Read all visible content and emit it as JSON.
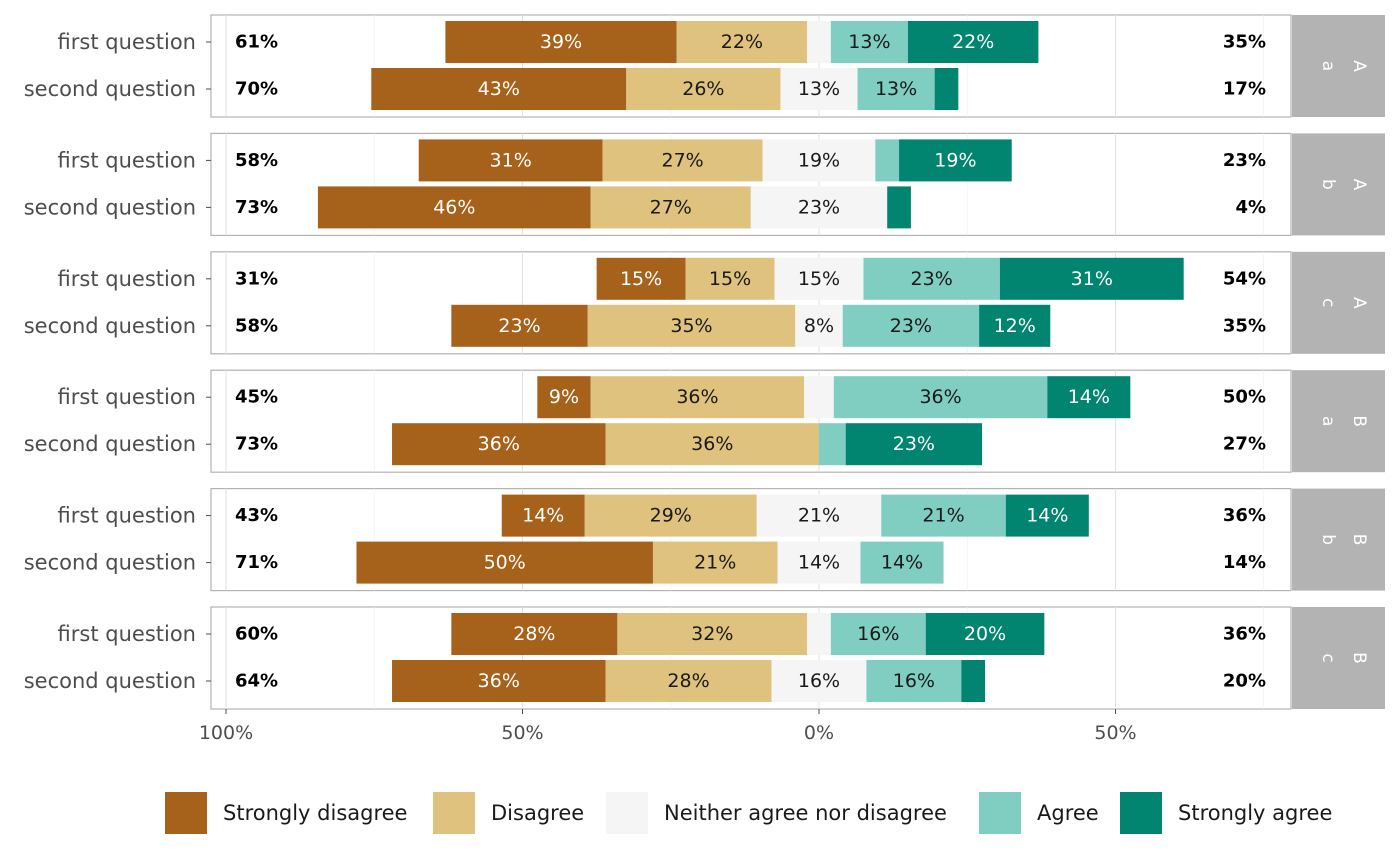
{
  "chart_data": {
    "type": "bar",
    "orientation": "horizontal-diverging",
    "xlim": [
      -100,
      75
    ],
    "x_ticks": [
      -100,
      -50,
      0,
      50
    ],
    "x_tick_labels": [
      "100%",
      "50%",
      "0%",
      "50%"
    ],
    "grid": true,
    "legend_position": "bottom",
    "levels": [
      "Strongly disagree",
      "Disagree",
      "Neither agree nor disagree",
      "Agree",
      "Strongly agree"
    ],
    "colors": [
      "#A6611A",
      "#DFC27D",
      "#F5F5F5",
      "#80CDC1",
      "#018571"
    ],
    "text_colors": [
      "#ffffff",
      "#1a1a1a",
      "#1a1a1a",
      "#1a1a1a",
      "#ffffff"
    ],
    "facets": [
      {
        "strip": [
          "A",
          "a"
        ],
        "questions": [
          {
            "label": "first question",
            "values": [
              39,
              22,
              4,
              13,
              22
            ],
            "labels": [
              "39%",
              "22%",
              "",
              "13%",
              "22%"
            ],
            "left": "61%",
            "right": "35%"
          },
          {
            "label": "second question",
            "values": [
              43,
              26,
              13,
              13,
              4
            ],
            "labels": [
              "43%",
              "26%",
              "13%",
              "13%",
              ""
            ],
            "left": "70%",
            "right": "17%"
          }
        ]
      },
      {
        "strip": [
          "A",
          "b"
        ],
        "questions": [
          {
            "label": "first question",
            "values": [
              31,
              27,
              19,
              4,
              19
            ],
            "labels": [
              "31%",
              "27%",
              "19%",
              "",
              "19%"
            ],
            "left": "58%",
            "right": "23%"
          },
          {
            "label": "second question",
            "values": [
              46,
              27,
              23,
              0,
              4
            ],
            "labels": [
              "46%",
              "27%",
              "23%",
              "",
              ""
            ],
            "left": "73%",
            "right": "4%"
          }
        ]
      },
      {
        "strip": [
          "A",
          "c"
        ],
        "questions": [
          {
            "label": "first question",
            "values": [
              15,
              15,
              15,
              23,
              31
            ],
            "labels": [
              "15%",
              "15%",
              "15%",
              "23%",
              "31%"
            ],
            "left": "31%",
            "right": "54%"
          },
          {
            "label": "second question",
            "values": [
              23,
              35,
              8,
              23,
              12
            ],
            "labels": [
              "23%",
              "35%",
              "8%",
              "23%",
              "12%"
            ],
            "left": "58%",
            "right": "35%"
          }
        ]
      },
      {
        "strip": [
          "B",
          "a"
        ],
        "questions": [
          {
            "label": "first question",
            "values": [
              9,
              36,
              5,
              36,
              14
            ],
            "labels": [
              "9%",
              "36%",
              "",
              "36%",
              "14%"
            ],
            "left": "45%",
            "right": "50%"
          },
          {
            "label": "second question",
            "values": [
              36,
              36,
              0,
              4.5,
              23
            ],
            "labels": [
              "36%",
              "36%",
              "",
              "",
              "23%"
            ],
            "left": "73%",
            "right": "27%"
          }
        ]
      },
      {
        "strip": [
          "B",
          "b"
        ],
        "questions": [
          {
            "label": "first question",
            "values": [
              14,
              29,
              21,
              21,
              14
            ],
            "labels": [
              "14%",
              "29%",
              "21%",
              "21%",
              "14%"
            ],
            "left": "43%",
            "right": "36%"
          },
          {
            "label": "second question",
            "values": [
              50,
              21,
              14,
              14,
              0
            ],
            "labels": [
              "50%",
              "21%",
              "14%",
              "14%",
              ""
            ],
            "left": "71%",
            "right": "14%"
          }
        ]
      },
      {
        "strip": [
          "B",
          "c"
        ],
        "questions": [
          {
            "label": "first question",
            "values": [
              28,
              32,
              4,
              16,
              20
            ],
            "labels": [
              "28%",
              "32%",
              "",
              "16%",
              "20%"
            ],
            "left": "60%",
            "right": "36%"
          },
          {
            "label": "second question",
            "values": [
              36,
              28,
              16,
              16,
              4
            ],
            "labels": [
              "36%",
              "28%",
              "16%",
              "16%",
              ""
            ],
            "left": "64%",
            "right": "20%"
          }
        ]
      }
    ]
  }
}
